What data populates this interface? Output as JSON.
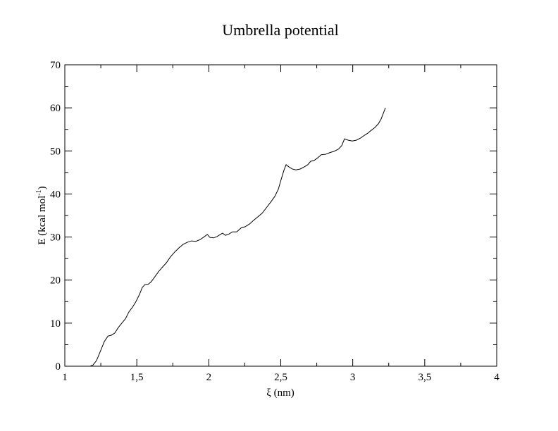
{
  "chart_data": {
    "type": "line",
    "title": "Umbrella potential",
    "xlabel": "ξ (nm)",
    "ylabel": [
      "E (kcal mol",
      "-1",
      ")"
    ],
    "xlim": [
      1,
      4
    ],
    "xticks": [
      1,
      {
        "value": 1.5,
        "label": "1,5"
      },
      2,
      {
        "value": 2.5,
        "label": "2,5"
      },
      3,
      {
        "value": 3.5,
        "label": "3,5"
      },
      4
    ],
    "xminorticks": [
      1.25,
      1.75,
      2.25,
      2.75,
      3.25,
      3.75
    ],
    "ylim": [
      0,
      70
    ],
    "yticks": [
      0,
      10,
      20,
      30,
      40,
      50,
      60,
      70
    ],
    "yminorticks": [
      5,
      15,
      25,
      35,
      45,
      55,
      65
    ],
    "color": "#000000",
    "x": [
      1.176,
      1.196,
      1.22,
      1.245,
      1.274,
      1.3,
      1.323,
      1.347,
      1.372,
      1.396,
      1.421,
      1.445,
      1.47,
      1.494,
      1.519,
      1.538,
      1.558,
      1.578,
      1.6,
      1.626,
      1.65,
      1.675,
      1.705,
      1.734,
      1.763,
      1.793,
      1.822,
      1.852,
      1.88,
      1.91,
      1.94,
      1.97,
      1.99,
      2.008,
      2.033,
      2.057,
      2.08,
      2.096,
      2.116,
      2.14,
      2.165,
      2.194,
      2.224,
      2.253,
      2.282,
      2.312,
      2.341,
      2.37,
      2.4,
      2.43,
      2.458,
      2.483,
      2.502,
      2.522,
      2.537,
      2.556,
      2.58,
      2.605,
      2.635,
      2.664,
      2.688,
      2.708,
      2.732,
      2.757,
      2.781,
      2.81,
      2.84,
      2.87,
      2.9,
      2.923,
      2.943,
      2.967,
      2.997,
      3.026,
      3.055,
      3.08,
      3.104,
      3.129,
      3.153,
      3.178,
      3.197,
      3.212,
      3.227
    ],
    "values": [
      0,
      0.3,
      1.3,
      3.3,
      5.7,
      7.0,
      7.2,
      7.7,
      9.0,
      10.0,
      11.0,
      12.6,
      13.7,
      15.0,
      16.7,
      18.3,
      19.0,
      19.0,
      19.6,
      20.8,
      21.9,
      22.9,
      24.0,
      25.4,
      26.5,
      27.5,
      28.3,
      28.8,
      29.1,
      29.0,
      29.4,
      30.1,
      30.6,
      29.9,
      29.8,
      30.1,
      30.6,
      30.9,
      30.4,
      30.7,
      31.2,
      31.2,
      32.1,
      32.4,
      33.0,
      33.9,
      34.7,
      35.5,
      36.8,
      38.1,
      39.4,
      41.1,
      43.3,
      45.5,
      46.8,
      46.3,
      45.8,
      45.6,
      45.8,
      46.3,
      46.8,
      47.6,
      47.8,
      48.4,
      49.1,
      49.2,
      49.6,
      49.9,
      50.4,
      51.2,
      52.8,
      52.5,
      52.3,
      52.5,
      53.0,
      53.6,
      54.1,
      54.8,
      55.4,
      56.3,
      57.4,
      58.7,
      60.0
    ]
  }
}
